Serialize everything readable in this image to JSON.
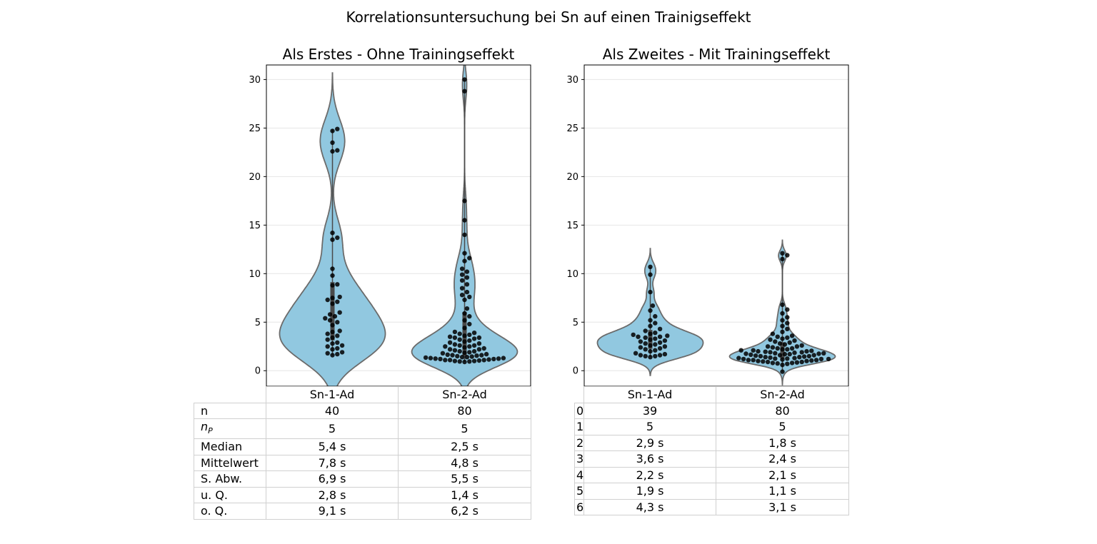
{
  "figure_title": "Korrelationsuntersuchung bei Sn auf einen Trainigseffekt",
  "colors": {
    "violin_fill": "#91c8e0",
    "violin_edge": "#6b6b6b",
    "dot": "#000000",
    "grid": "#e6e6e6",
    "table_border": "#d0d0d0"
  },
  "chart_data": [
    {
      "type": "violin",
      "title": "Als Erstes - Ohne Trainingseffekt",
      "xlabel": "",
      "ylabel": "",
      "categories": [
        "Sn-1-Ad",
        "Sn-2-Ad"
      ],
      "ylim": [
        -1.6,
        31.5
      ],
      "yticks": [
        0,
        5,
        10,
        15,
        20,
        25,
        30
      ],
      "grid": true,
      "series": [
        {
          "category": "Sn-1-Ad",
          "values": [
            1.6,
            1.7,
            1.8,
            1.9,
            2.2,
            2.3,
            2.5,
            2.6,
            2.8,
            2.9,
            3.2,
            3.4,
            3.6,
            3.8,
            4.0,
            4.1,
            4.7,
            5.0,
            5.2,
            5.4,
            5.6,
            5.8,
            6.0,
            6.9,
            7.1,
            7.3,
            7.5,
            7.6,
            8.8,
            8.9,
            9.8,
            10.5,
            13.5,
            13.7,
            14.2,
            22.6,
            22.7,
            23.5,
            24.7,
            24.9
          ]
        },
        {
          "category": "Sn-2-Ad",
          "values": [
            0.9,
            0.95,
            1.0,
            1.0,
            1.05,
            1.1,
            1.1,
            1.15,
            1.2,
            1.2,
            1.25,
            1.3,
            1.3,
            1.35,
            1.4,
            1.45,
            1.5,
            1.55,
            1.6,
            1.65,
            1.7,
            1.8,
            1.85,
            1.9,
            2.0,
            2.0,
            2.1,
            2.2,
            2.2,
            2.3,
            2.4,
            2.5,
            2.5,
            2.6,
            2.6,
            2.7,
            2.8,
            2.9,
            3.0,
            3.1,
            3.2,
            3.3,
            3.4,
            3.4,
            3.5,
            3.6,
            3.7,
            3.8,
            3.9,
            4.0,
            4.4,
            4.8,
            5.2,
            5.6,
            5.9,
            6.4,
            7.3,
            7.6,
            7.8,
            8.1,
            8.5,
            8.9,
            9.3,
            9.6,
            9.9,
            10.2,
            10.5,
            11.3,
            11.6,
            12.1,
            14.0,
            15.5,
            17.5,
            28.8,
            30.0,
            0.95,
            1.1,
            1.25,
            1.4,
            1.6
          ]
        }
      ]
    },
    {
      "type": "violin",
      "title": "Als Zweites - Mit Trainingseffekt",
      "xlabel": "",
      "ylabel": "",
      "categories": [
        "Sn-1-Ad",
        "Sn-2-Ad"
      ],
      "ylim": [
        -1.6,
        31.5
      ],
      "yticks": [
        0,
        5,
        10,
        15,
        20,
        25,
        30
      ],
      "grid": true,
      "series": [
        {
          "category": "Sn-1-Ad",
          "values": [
            1.4,
            1.5,
            1.6,
            1.6,
            1.7,
            1.8,
            2.0,
            2.1,
            2.2,
            2.3,
            2.5,
            2.6,
            2.7,
            2.8,
            2.9,
            3.0,
            3.1,
            3.2,
            3.3,
            3.4,
            3.5,
            3.5,
            3.6,
            3.7,
            3.9,
            4.1,
            4.3,
            4.6,
            4.9,
            5.2,
            5.6,
            6.2,
            6.7,
            8.1,
            9.9,
            10.7,
            1.5,
            2.4,
            3.8
          ]
        },
        {
          "category": "Sn-2-Ad",
          "values": [
            -0.1,
            0.6,
            0.7,
            0.75,
            0.8,
            0.8,
            0.85,
            0.9,
            0.9,
            0.95,
            1.0,
            1.0,
            1.05,
            1.1,
            1.1,
            1.1,
            1.15,
            1.2,
            1.2,
            1.2,
            1.25,
            1.3,
            1.3,
            1.35,
            1.4,
            1.4,
            1.45,
            1.5,
            1.5,
            1.55,
            1.6,
            1.6,
            1.65,
            1.7,
            1.7,
            1.75,
            1.8,
            1.8,
            1.85,
            1.9,
            1.9,
            1.95,
            2.0,
            2.0,
            2.05,
            2.1,
            2.1,
            2.2,
            2.2,
            2.3,
            2.3,
            2.4,
            2.5,
            2.5,
            2.6,
            2.7,
            2.8,
            2.9,
            3.0,
            3.1,
            3.2,
            3.3,
            3.4,
            3.5,
            3.6,
            3.8,
            4.0,
            4.3,
            4.6,
            4.9,
            5.2,
            5.5,
            5.9,
            6.3,
            6.8,
            11.5,
            11.9,
            12.1,
            1.25,
            1.75
          ]
        }
      ]
    }
  ],
  "table_left": {
    "columns": [
      "Sn-1-Ad",
      "Sn-2-Ad"
    ],
    "rows": [
      {
        "label": "n",
        "values": [
          "40",
          "80"
        ]
      },
      {
        "label": "n",
        "label_sub": "P",
        "values": [
          "5",
          "5"
        ]
      },
      {
        "label": "Median",
        "values": [
          "5,4 s",
          "2,5 s"
        ]
      },
      {
        "label": "Mittelwert",
        "values": [
          "7,8 s",
          "4,8 s"
        ]
      },
      {
        "label": "S. Abw.",
        "values": [
          "6,9 s",
          "5,5 s"
        ]
      },
      {
        "label": "u. Q.",
        "values": [
          "2,8 s",
          "1,4 s"
        ]
      },
      {
        "label": "o. Q.",
        "values": [
          "9,1 s",
          "6,2 s"
        ]
      }
    ]
  },
  "table_right": {
    "columns": [
      "Sn-1-Ad",
      "Sn-2-Ad"
    ],
    "rows": [
      {
        "label": "0",
        "values": [
          "39",
          "80"
        ]
      },
      {
        "label": "1",
        "values": [
          "5",
          "5"
        ]
      },
      {
        "label": "2",
        "values": [
          "2,9 s",
          "1,8 s"
        ]
      },
      {
        "label": "3",
        "values": [
          "3,6 s",
          "2,4 s"
        ]
      },
      {
        "label": "4",
        "values": [
          "2,2 s",
          "2,1 s"
        ]
      },
      {
        "label": "5",
        "values": [
          "1,9 s",
          "1,1 s"
        ]
      },
      {
        "label": "6",
        "values": [
          "4,3 s",
          "3,1 s"
        ]
      }
    ]
  }
}
